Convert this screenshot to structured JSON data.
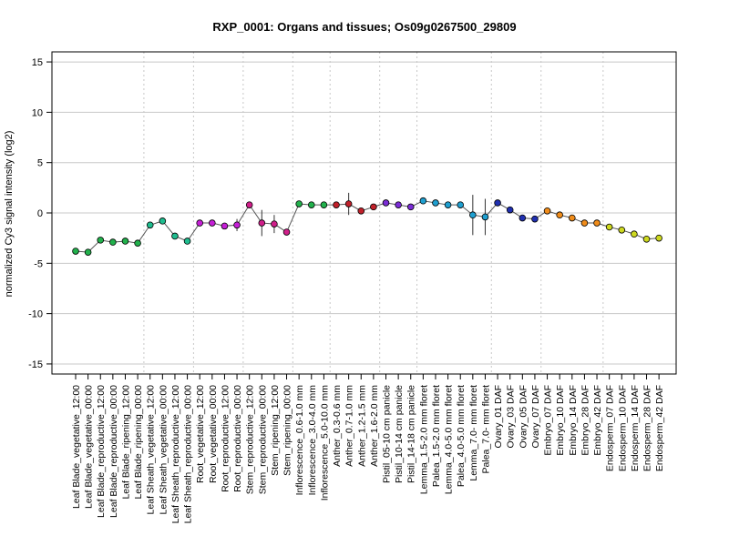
{
  "chart_data": {
    "type": "line",
    "title": "RXP_0001: Organs and tissues; Os09g0267500_29809",
    "xlabel": "",
    "ylabel": "normalized Cy3 signal intensity (log2)",
    "ylim": [
      -16,
      16
    ],
    "yticks": [
      -15,
      -10,
      -5,
      0,
      5,
      10,
      15
    ],
    "grid": "horizontal lines at y ticks; dotted vertical separators between tissue groups",
    "categories": [
      "Leaf Blade_vegetative_12:00",
      "Leaf Blade_vegetative_00:00",
      "Leaf Blade_reproductive_12:00",
      "Leaf Blade_reproductive_00:00",
      "Leaf Blade_ripening_12:00",
      "Leaf Blade_ripening_00:00",
      "Leaf Sheath_vegetative_12:00",
      "Leaf Sheath_vegetative_00:00",
      "Leaf Sheath_reproductive_12:00",
      "Leaf Sheath_reproductive_00:00",
      "Root_vegetative_12:00",
      "Root_vegetative_00:00",
      "Root_reproductive_12:00",
      "Root_reproductive_00:00",
      "Stem_reproductive_12:00",
      "Stem_reproductive_00:00",
      "Stem_ripening_12:00",
      "Stem_ripening_00:00",
      "Inflorescence_0.6-1.0 mm",
      "Inflorescence_3.0-4.0 mm",
      "Inflorescence_5.0-10.0 mm",
      "Anther_0.3-0.6 mm",
      "Anther_0.7-1.0 mm",
      "Anther_1.2-1.5 mm",
      "Anther_1.6-2.0 mm",
      "Pistil_05-10 cm panicle",
      "Pistil_10-14 cm panicle",
      "Pistil_14-18 cm panicle",
      "Lemma_1.5-2.0 mm floret",
      "Palea_1.5-2.0 mm floret",
      "Lemma_4.0-5.0 mm floret",
      "Palea_4.0-5.0 mm floret",
      "Lemma_7.0- mm floret",
      "Palea_7.0- mm floret",
      "Ovary_01 DAF",
      "Ovary_03 DAF",
      "Ovary_05 DAF",
      "Ovary_07 DAF",
      "Embryo_07 DAF",
      "Embryo_10 DAF",
      "Embryo_14 DAF",
      "Embryo_28 DAF",
      "Embryo_42 DAF",
      "Endosperm_07 DAF",
      "Endosperm_10 DAF",
      "Endosperm_14 DAF",
      "Endosperm_28 DAF",
      "Endosperm_42 DAF"
    ],
    "series": [
      {
        "values": [
          -3.8,
          -3.9,
          -2.7,
          -2.9,
          -2.8,
          -3.0,
          -1.2,
          -0.8,
          -2.3,
          -2.8,
          -1.0,
          -1.0,
          -1.3,
          -1.2,
          0.8,
          -1.0,
          -1.1,
          -1.9,
          0.9,
          0.8,
          0.8,
          0.8,
          0.9,
          0.2,
          0.6,
          1.0,
          0.8,
          0.6,
          1.2,
          1.0,
          0.8,
          0.8,
          -0.2,
          -0.4,
          1.0,
          0.3,
          -0.5,
          -0.6,
          0.2,
          -0.2,
          -0.5,
          -1.0,
          -1.0,
          -1.4,
          -1.7,
          -2.1,
          -2.6,
          -2.5
        ],
        "errors": [
          0.2,
          0.2,
          0.15,
          0.15,
          0.3,
          0.2,
          0.2,
          0.2,
          0.15,
          0.15,
          0.2,
          0.15,
          0.15,
          0.6,
          0.1,
          1.3,
          0.9,
          0.3,
          0.15,
          0.3,
          0.15,
          0.15,
          1.1,
          0.15,
          0.3,
          0.15,
          0.15,
          0.15,
          0.15,
          0.15,
          0.15,
          0.15,
          2.0,
          1.8,
          0.3,
          0.15,
          0.15,
          0.15,
          0.15,
          0.15,
          0.15,
          0.15,
          0.15,
          0.15,
          0.15,
          0.15,
          0.3,
          0.15
        ]
      }
    ],
    "point_colors": [
      "#22b14c",
      "#22b14c",
      "#22b14c",
      "#22b14c",
      "#22b14c",
      "#22b14c",
      "#1fbd8f",
      "#1fbd8f",
      "#1fbd8f",
      "#1fbd8f",
      "#c51fd6",
      "#c51fd6",
      "#c51fd6",
      "#c51fd6",
      "#d01f8a",
      "#d01f8a",
      "#d01f8a",
      "#d01f8a",
      "#22b14c",
      "#22b14c",
      "#22b14c",
      "#c0202a",
      "#c0202a",
      "#c0202a",
      "#c0202a",
      "#7b2dd6",
      "#7b2dd6",
      "#7b2dd6",
      "#1f9fd0",
      "#1f9fd0",
      "#1f9fd0",
      "#1f9fd0",
      "#1f9fd0",
      "#1f9fd0",
      "#1f2fb0",
      "#1f2fb0",
      "#1f2fb0",
      "#1f2fb0",
      "#f08c1a",
      "#f08c1a",
      "#f08c1a",
      "#f08c1a",
      "#f08c1a",
      "#cdd81f",
      "#cdd81f",
      "#cdd81f",
      "#cdd81f",
      "#cdd81f"
    ],
    "group_separators_after_index": [
      5,
      9,
      13,
      17,
      20,
      24,
      27,
      33,
      37,
      42
    ]
  }
}
